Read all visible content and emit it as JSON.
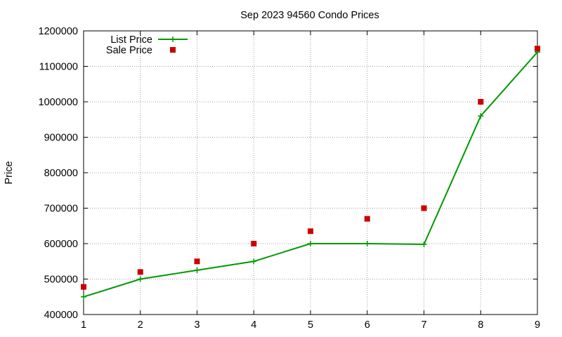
{
  "chart_data": {
    "type": "line",
    "title": "Sep 2023 94560 Condo Prices",
    "xlabel": "",
    "ylabel": "Price",
    "xlim": [
      1,
      9
    ],
    "ylim": [
      400000,
      1200000
    ],
    "x_ticks": [
      "1",
      "2",
      "3",
      "4",
      "5",
      "6",
      "7",
      "8",
      "9"
    ],
    "y_ticks": [
      "400000",
      "500000",
      "600000",
      "700000",
      "800000",
      "900000",
      "1000000",
      "1100000",
      "1200000"
    ],
    "grid": true,
    "legend_position": "top-left",
    "series": [
      {
        "name": "List Price",
        "style": "line-with-plus-markers",
        "color": "#009900",
        "x": [
          1,
          2,
          3,
          4,
          5,
          6,
          7,
          8,
          9
        ],
        "y": [
          450000,
          500000,
          525000,
          550000,
          600000,
          600000,
          598000,
          960000,
          1140000
        ]
      },
      {
        "name": "Sale Price",
        "style": "square-markers",
        "color": "#cc0000",
        "x": [
          1,
          2,
          3,
          4,
          5,
          6,
          7,
          8,
          9
        ],
        "y": [
          478000,
          520000,
          550000,
          600000,
          635000,
          670000,
          700000,
          1000000,
          1150000
        ]
      }
    ]
  }
}
